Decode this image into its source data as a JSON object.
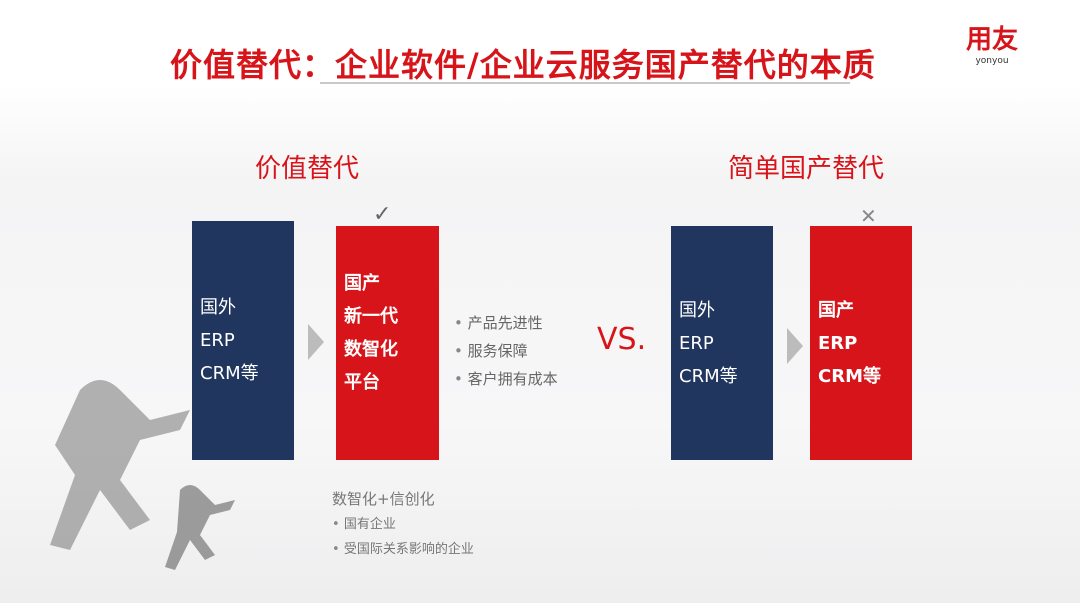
{
  "title": "价值替代：企业软件/企业云服务国产替代的本质",
  "logo": {
    "cn": "用友",
    "en": "yonyou"
  },
  "left": {
    "heading": "价值替代",
    "foreign_box": [
      "国外",
      "ERP",
      "CRM等"
    ],
    "domestic_box": [
      "国产",
      "新一代",
      "数智化",
      "平台"
    ],
    "check_icon": "check-mark",
    "bullets": [
      "产品先进性",
      "服务保障",
      "客户拥有成本"
    ],
    "sub_title": "数智化+信创化",
    "sub_bullets": [
      "国有企业",
      "受国际关系影响的企业"
    ]
  },
  "vs": "VS.",
  "right": {
    "heading": "简单国产替代",
    "foreign_box": [
      "国外",
      "ERP",
      "CRM等"
    ],
    "domestic_box": [
      "国产",
      "ERP",
      "CRM等"
    ],
    "cross_icon": "x-mark"
  },
  "colors": {
    "accent": "#d7141a",
    "navy": "#20365f"
  }
}
